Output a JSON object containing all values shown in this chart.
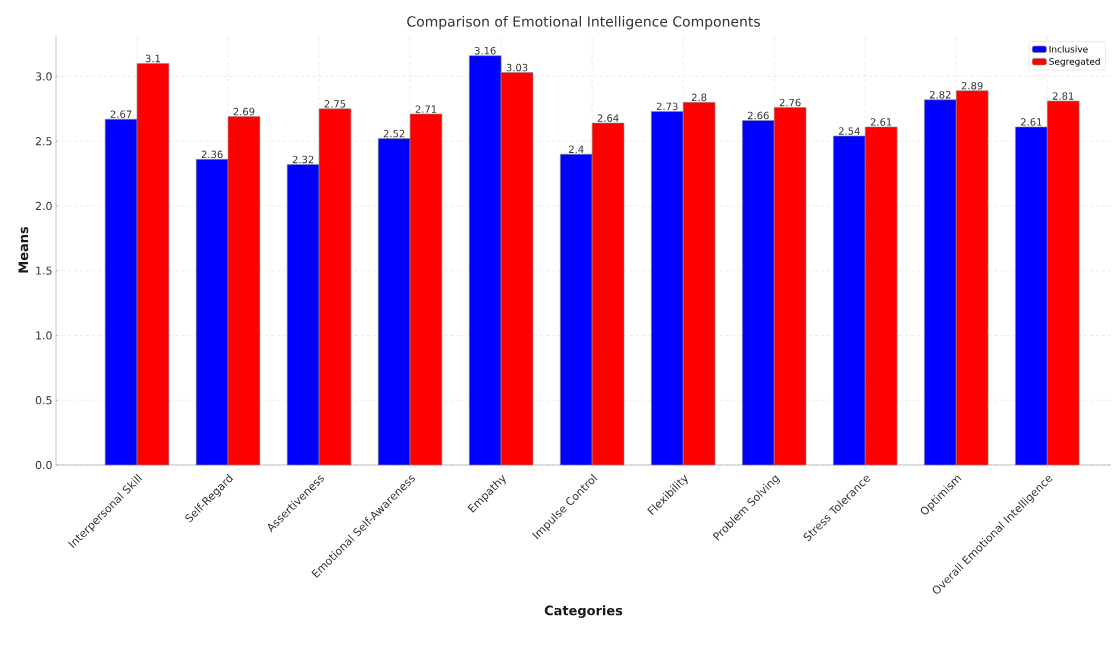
{
  "chart_data": {
    "type": "bar",
    "title": "Comparison of Emotional Intelligence Components",
    "xlabel": "Categories",
    "ylabel": "Means",
    "categories": [
      "Interpersonal Skill",
      "Self-Regard",
      "Assertiveness",
      "Emotional Self-Awareness",
      "Empathy",
      "Impulse Control",
      "Flexibility",
      "Problem Solving",
      "Stress Tolerance",
      "Optimism",
      "Overall Emotional Intelligence"
    ],
    "series": [
      {
        "name": "Inclusive",
        "color": "#0000ff",
        "values": [
          2.67,
          2.36,
          2.32,
          2.52,
          3.16,
          2.4,
          2.73,
          2.66,
          2.54,
          2.82,
          2.61
        ]
      },
      {
        "name": "Segregated",
        "color": "#ff0000",
        "values": [
          3.1,
          2.69,
          2.75,
          2.71,
          3.03,
          2.64,
          2.8,
          2.76,
          2.61,
          2.89,
          2.81
        ]
      }
    ],
    "ylim": [
      0,
      3.32
    ],
    "yticks": [
      {
        "value": 0,
        "label": "0.0"
      },
      {
        "value": 0.5,
        "label": "0.5"
      },
      {
        "value": 1,
        "label": "1.0"
      },
      {
        "value": 1.5,
        "label": "1.5"
      },
      {
        "value": 2,
        "label": "2.0"
      },
      {
        "value": 2.5,
        "label": "2.5"
      },
      {
        "value": 3,
        "label": "3.0"
      }
    ],
    "grid": true,
    "legend": "top right",
    "data_labels": true
  }
}
